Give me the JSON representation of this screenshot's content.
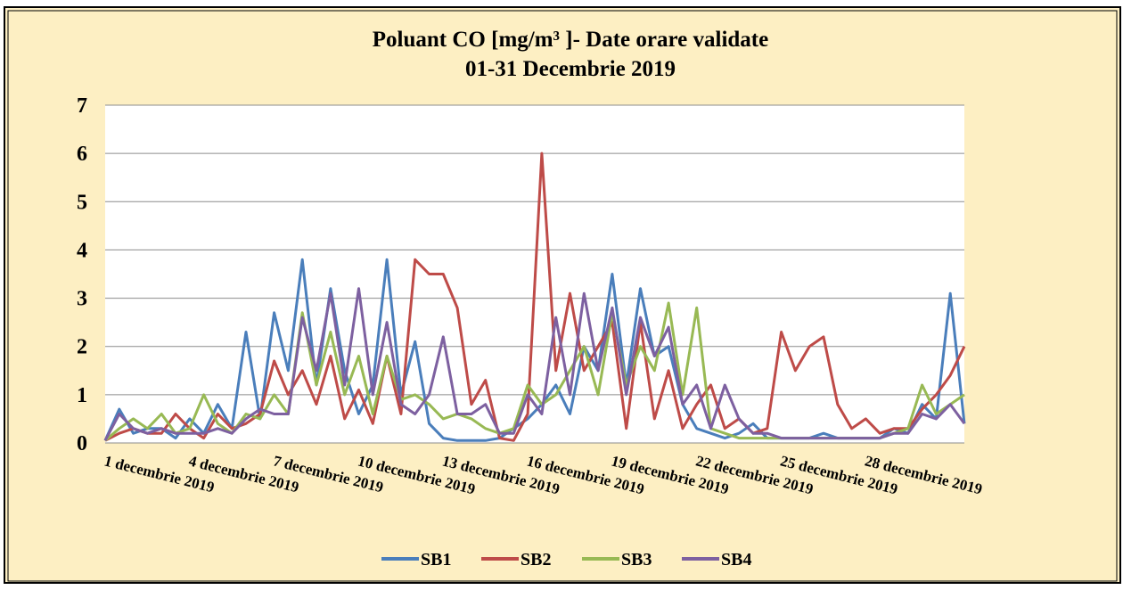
{
  "chart_data": {
    "type": "line",
    "title": "Poluant CO [mg/m³ ]- Date orare validate",
    "subtitle": "01-31 Decembrie 2019",
    "categories": [
      "1 decembrie 2019",
      null,
      null,
      null,
      null,
      null,
      "4 decembrie 2019",
      null,
      null,
      null,
      null,
      null,
      "7 decembrie 2019",
      null,
      null,
      null,
      null,
      null,
      "10 decembrie 2019",
      null,
      null,
      null,
      null,
      null,
      "13 decembrie 2019",
      null,
      null,
      null,
      null,
      null,
      "16 decembrie 2019",
      null,
      null,
      null,
      null,
      null,
      "19 decembrie 2019",
      null,
      null,
      null,
      null,
      null,
      "22 decembrie 2019",
      null,
      null,
      null,
      null,
      null,
      "25 decembrie 2019",
      null,
      null,
      null,
      null,
      null,
      "28 decembrie 2019",
      null,
      null,
      null,
      null,
      null,
      null,
      null
    ],
    "series": [
      {
        "name": "SB1",
        "color": "#4a7ebb",
        "values": [
          0.05,
          0.7,
          0.2,
          0.3,
          0.3,
          0.1,
          0.5,
          0.2,
          0.8,
          0.3,
          2.3,
          0.5,
          2.7,
          1.5,
          3.8,
          1.2,
          3.2,
          1.5,
          0.6,
          1.2,
          3.8,
          1.0,
          2.1,
          0.4,
          0.1,
          0.05,
          0.05,
          0.05,
          0.1,
          0.3,
          0.5,
          0.8,
          1.2,
          0.6,
          2.0,
          1.5,
          3.5,
          1.2,
          3.2,
          1.8,
          2.0,
          0.8,
          0.3,
          0.2,
          0.1,
          0.2,
          0.4,
          0.1,
          0.1,
          0.1,
          0.1,
          0.2,
          0.1,
          0.1,
          0.1,
          0.1,
          0.3,
          0.2,
          0.8,
          0.5,
          3.1,
          0.4
        ]
      },
      {
        "name": "SB2",
        "color": "#be4b48",
        "values": [
          0.05,
          0.2,
          0.3,
          0.2,
          0.2,
          0.6,
          0.3,
          0.1,
          0.6,
          0.3,
          0.4,
          0.6,
          1.7,
          1.0,
          1.5,
          0.8,
          1.8,
          0.5,
          1.1,
          0.4,
          1.8,
          0.6,
          3.8,
          3.5,
          3.5,
          2.8,
          0.8,
          1.3,
          0.1,
          0.05,
          0.6,
          6.0,
          1.5,
          3.1,
          1.5,
          2.0,
          2.5,
          0.3,
          2.5,
          0.5,
          1.5,
          0.3,
          0.8,
          1.2,
          0.3,
          0.5,
          0.2,
          0.3,
          2.3,
          1.5,
          2.0,
          2.2,
          0.8,
          0.3,
          0.5,
          0.2,
          0.3,
          0.3,
          0.7,
          1.0,
          1.4,
          2.0
        ]
      },
      {
        "name": "SB3",
        "color": "#98b954",
        "values": [
          0.05,
          0.3,
          0.5,
          0.3,
          0.6,
          0.2,
          0.3,
          1.0,
          0.4,
          0.2,
          0.6,
          0.5,
          1.0,
          0.6,
          2.7,
          1.2,
          2.3,
          1.0,
          1.8,
          0.6,
          1.8,
          0.9,
          1.0,
          0.8,
          0.5,
          0.6,
          0.5,
          0.3,
          0.2,
          0.3,
          1.2,
          0.8,
          1.0,
          1.5,
          2.0,
          1.0,
          2.7,
          1.2,
          2.0,
          1.5,
          2.9,
          1.0,
          2.8,
          0.3,
          0.2,
          0.1,
          0.1,
          0.1,
          0.1,
          0.1,
          0.1,
          0.1,
          0.1,
          0.1,
          0.1,
          0.1,
          0.2,
          0.3,
          1.2,
          0.6,
          0.8,
          1.0
        ]
      },
      {
        "name": "SB4",
        "color": "#7d60a0",
        "values": [
          0.05,
          0.6,
          0.3,
          0.2,
          0.3,
          0.2,
          0.2,
          0.2,
          0.3,
          0.2,
          0.5,
          0.7,
          0.6,
          0.6,
          2.6,
          1.5,
          3.1,
          1.2,
          3.2,
          1.0,
          2.5,
          0.8,
          0.6,
          1.0,
          2.2,
          0.6,
          0.6,
          0.8,
          0.2,
          0.2,
          1.0,
          0.6,
          2.6,
          1.0,
          3.1,
          1.5,
          2.8,
          1.0,
          2.6,
          1.8,
          2.4,
          0.8,
          1.2,
          0.3,
          1.2,
          0.5,
          0.2,
          0.2,
          0.1,
          0.1,
          0.1,
          0.1,
          0.1,
          0.1,
          0.1,
          0.1,
          0.2,
          0.2,
          0.6,
          0.5,
          0.8,
          0.4
        ]
      }
    ],
    "ylim": [
      0,
      7
    ],
    "yticks": [
      0,
      1,
      2,
      3,
      4,
      5,
      6,
      7
    ],
    "grid": true,
    "legend": "bottom"
  }
}
